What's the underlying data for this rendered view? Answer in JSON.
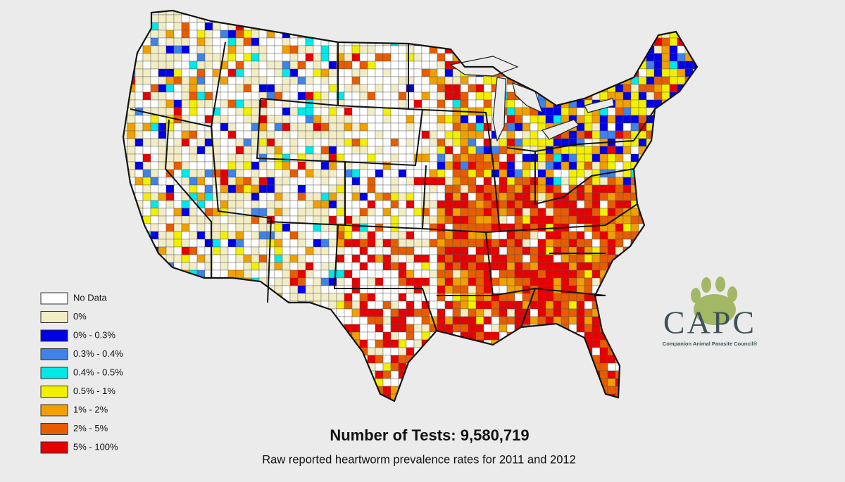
{
  "legend": {
    "items": [
      {
        "label": "No Data",
        "color": "#ffffff"
      },
      {
        "label": "0%",
        "color": "#f3edc6"
      },
      {
        "label": "0% - 0.3%",
        "color": "#0000e6"
      },
      {
        "label": "0.3% - 0.4%",
        "color": "#3f82e8"
      },
      {
        "label": "0.4% - 0.5%",
        "color": "#00e8e8"
      },
      {
        "label": "0.5% - 1%",
        "color": "#f2f000"
      },
      {
        "label": "1% - 2%",
        "color": "#f0a000"
      },
      {
        "label": "2% - 5%",
        "color": "#e85c00"
      },
      {
        "label": "5% - 100%",
        "color": "#e80000"
      }
    ]
  },
  "footer": {
    "title": "Number of Tests: 9,580,719",
    "subtitle": "Raw reported heartworm prevalence rates for 2011 and 2012"
  },
  "logo": {
    "name": "CAPC",
    "tagline": "Companion Animal Parasite Council®"
  }
}
